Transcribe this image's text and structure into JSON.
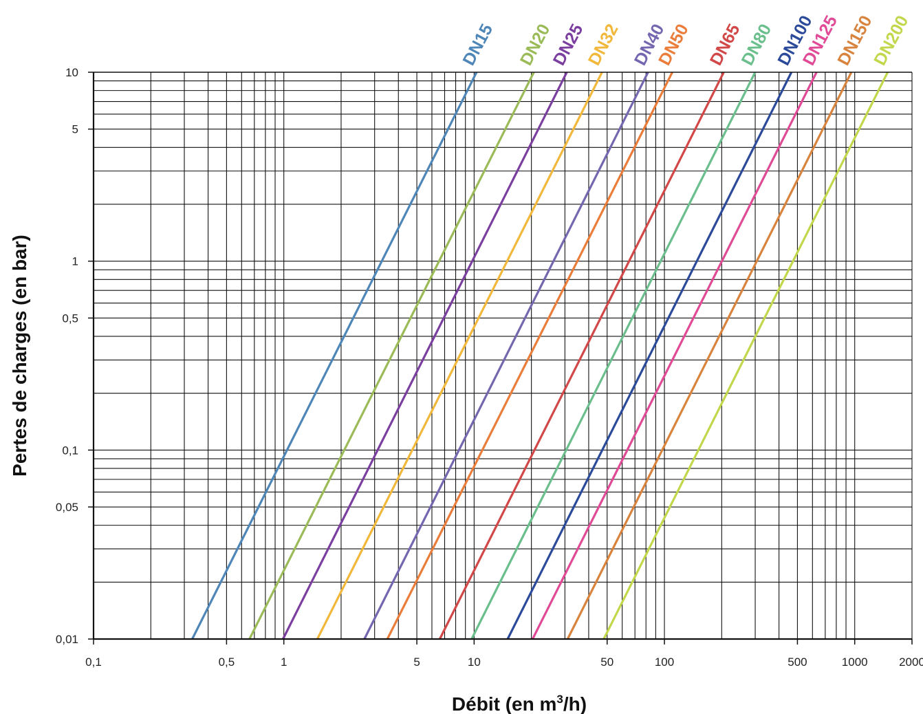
{
  "chart_data": {
    "type": "line",
    "xscale": "log",
    "yscale": "log",
    "xlim": [
      0.1,
      2000
    ],
    "ylim": [
      0.01,
      10
    ],
    "grid": true,
    "xlabel": {
      "main": "Débit (en m",
      "sup": "3",
      "end": "/h)"
    },
    "ylabel": "Pertes de charges (en bar)",
    "x_ticks": [
      {
        "value": 0.1,
        "label": "0,1"
      },
      {
        "value": 0.5,
        "label": "0,5"
      },
      {
        "value": 1,
        "label": "1"
      },
      {
        "value": 5,
        "label": "5"
      },
      {
        "value": 10,
        "label": "10"
      },
      {
        "value": 50,
        "label": "50"
      },
      {
        "value": 100,
        "label": "100"
      },
      {
        "value": 500,
        "label": "500"
      },
      {
        "value": 1000,
        "label": "1000"
      },
      {
        "value": 2000,
        "label": "2000"
      }
    ],
    "y_ticks": [
      {
        "value": 10,
        "label": "10"
      },
      {
        "value": 5,
        "label": "5"
      },
      {
        "value": 1,
        "label": "1"
      },
      {
        "value": 0.5,
        "label": "0,5"
      },
      {
        "value": 0.1,
        "label": "0,1"
      },
      {
        "value": 0.05,
        "label": "0,05"
      },
      {
        "value": 0.01,
        "label": "0,01"
      }
    ],
    "series": [
      {
        "name": "DN15",
        "color": "#4f86b8",
        "x": [
          0.33,
          10.3
        ],
        "y": [
          0.01,
          10
        ]
      },
      {
        "name": "DN20",
        "color": "#9bbb59",
        "x": [
          0.66,
          20.6
        ],
        "y": [
          0.01,
          10
        ]
      },
      {
        "name": "DN25",
        "color": "#7b3fa0",
        "x": [
          0.99,
          30.7
        ],
        "y": [
          0.01,
          10
        ]
      },
      {
        "name": "DN32",
        "color": "#f2b83c",
        "x": [
          1.5,
          47
        ],
        "y": [
          0.01,
          10
        ]
      },
      {
        "name": "DN40",
        "color": "#7566b0",
        "x": [
          2.65,
          82
        ],
        "y": [
          0.01,
          10
        ]
      },
      {
        "name": "DN50",
        "color": "#ea7d3a",
        "x": [
          3.5,
          110
        ],
        "y": [
          0.01,
          10
        ]
      },
      {
        "name": "DN65",
        "color": "#d24848",
        "x": [
          6.6,
          205
        ],
        "y": [
          0.01,
          10
        ]
      },
      {
        "name": "DN80",
        "color": "#6bbf8c",
        "x": [
          9.7,
          300
        ],
        "y": [
          0.01,
          10
        ]
      },
      {
        "name": "DN100",
        "color": "#2c4a9a",
        "x": [
          15,
          465
        ],
        "y": [
          0.01,
          10
        ]
      },
      {
        "name": "DN125",
        "color": "#e04a96",
        "x": [
          20.3,
          630
        ],
        "y": [
          0.01,
          10
        ]
      },
      {
        "name": "DN150",
        "color": "#d8843e",
        "x": [
          31,
          960
        ],
        "y": [
          0.01,
          10
        ]
      },
      {
        "name": "DN200",
        "color": "#c3d74c",
        "x": [
          48,
          1490
        ],
        "y": [
          0.01,
          10
        ]
      }
    ]
  }
}
